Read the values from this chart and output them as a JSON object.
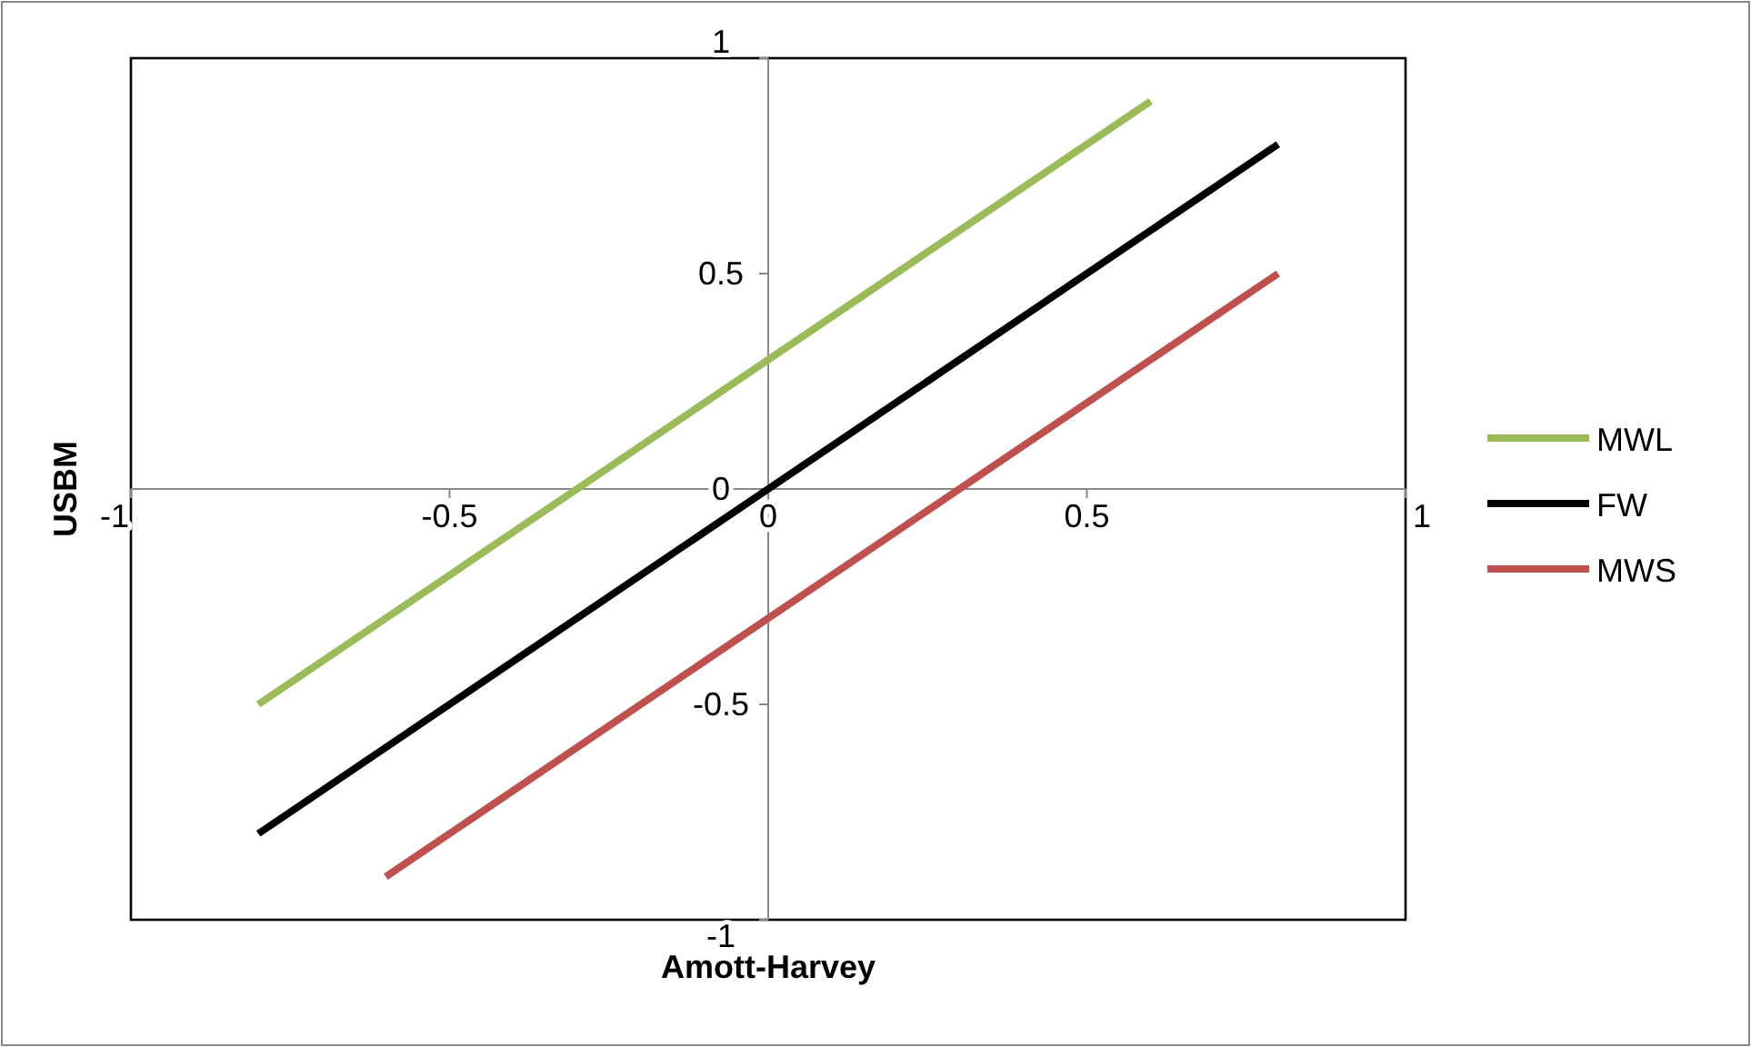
{
  "chart_data": {
    "type": "line",
    "xlabel": "Amott-Harvey",
    "ylabel": "USBM",
    "xlim": [
      -1,
      1
    ],
    "ylim": [
      -1,
      1
    ],
    "xticks": [
      -1,
      -0.5,
      0,
      0.5,
      1
    ],
    "yticks": [
      -1,
      -0.5,
      0,
      0.5,
      1
    ],
    "legend": "right",
    "grid": false,
    "marker": "none",
    "line_style": "solid",
    "series": [
      {
        "name": "MWL",
        "color": "#9bbb59",
        "x": [
          -0.8,
          0.6
        ],
        "values": [
          -0.5,
          0.9
        ]
      },
      {
        "name": "FW",
        "color": "#000000",
        "x": [
          -0.8,
          0.8
        ],
        "values": [
          -0.8,
          0.8
        ]
      },
      {
        "name": "MWS",
        "color": "#c0504d",
        "x": [
          -0.6,
          0.8
        ],
        "values": [
          -0.9,
          0.5
        ]
      }
    ]
  }
}
